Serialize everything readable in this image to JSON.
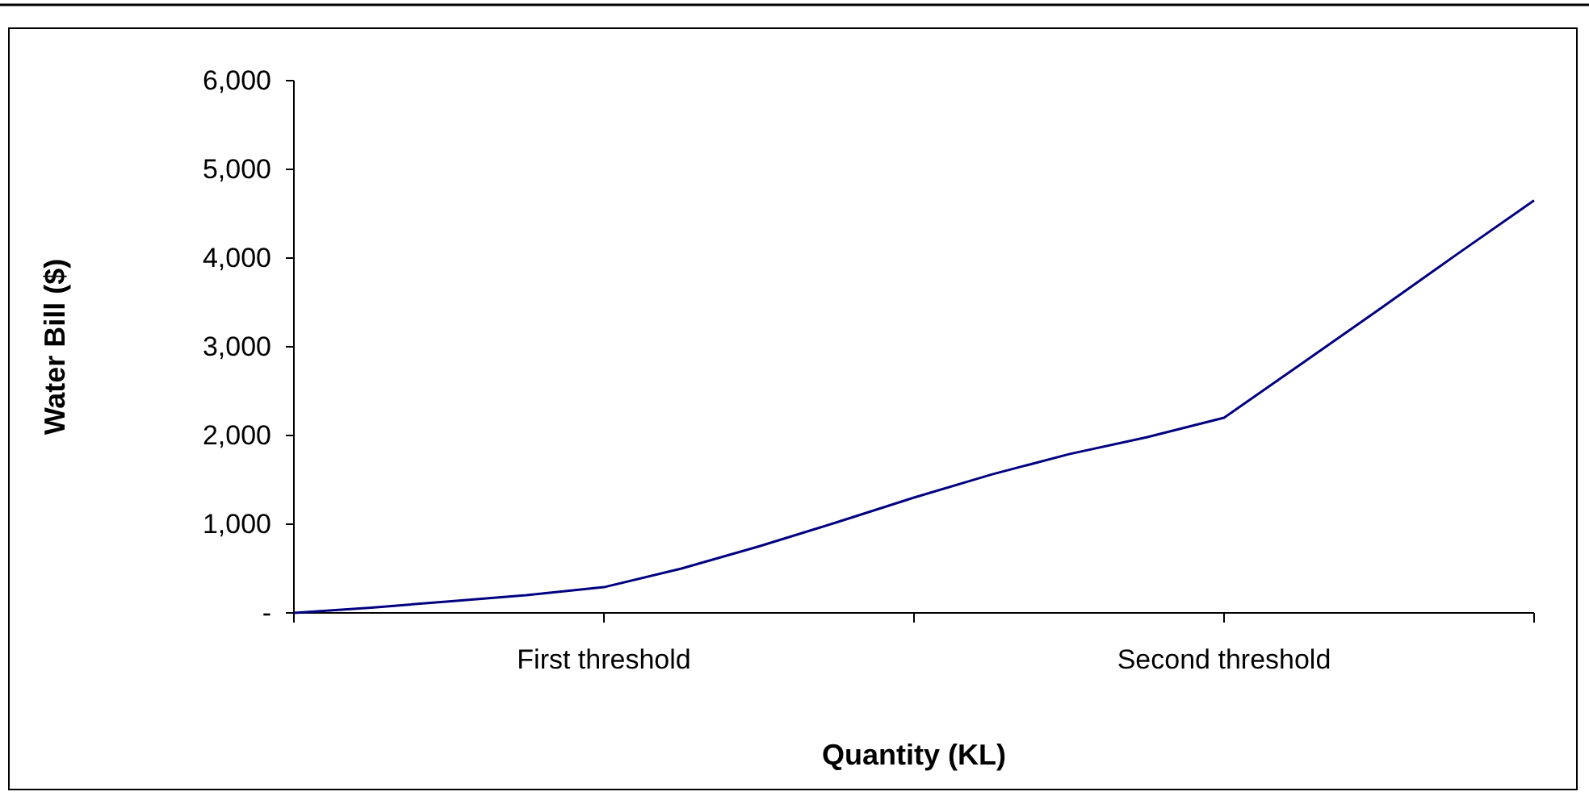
{
  "chart_data": {
    "type": "line",
    "xlabel": "Quantity (KL)",
    "ylabel": "Water Bill ($)",
    "categories": [
      null,
      null,
      null,
      null,
      "First threshold",
      null,
      null,
      null,
      null,
      null,
      null,
      null,
      "Second threshold",
      null,
      null,
      null,
      null
    ],
    "ylim": [
      0,
      6000
    ],
    "yticks": [
      {
        "value": 0,
        "label": "-"
      },
      {
        "value": 1000,
        "label": "1,000"
      },
      {
        "value": 2000,
        "label": "2,000"
      },
      {
        "value": 3000,
        "label": "3,000"
      },
      {
        "value": 4000,
        "label": "4,000"
      },
      {
        "value": 5000,
        "label": "5,000"
      },
      {
        "value": 6000,
        "label": "6,000"
      }
    ],
    "series": [
      {
        "color": "#000080",
        "values": [
          0,
          60,
          130,
          200,
          290,
          500,
          750,
          1020,
          1300,
          1560,
          1790,
          1980,
          2200,
          2810,
          3420,
          4040,
          4650
        ]
      }
    ],
    "grid": false,
    "marker": "none",
    "line_style": "solid"
  }
}
